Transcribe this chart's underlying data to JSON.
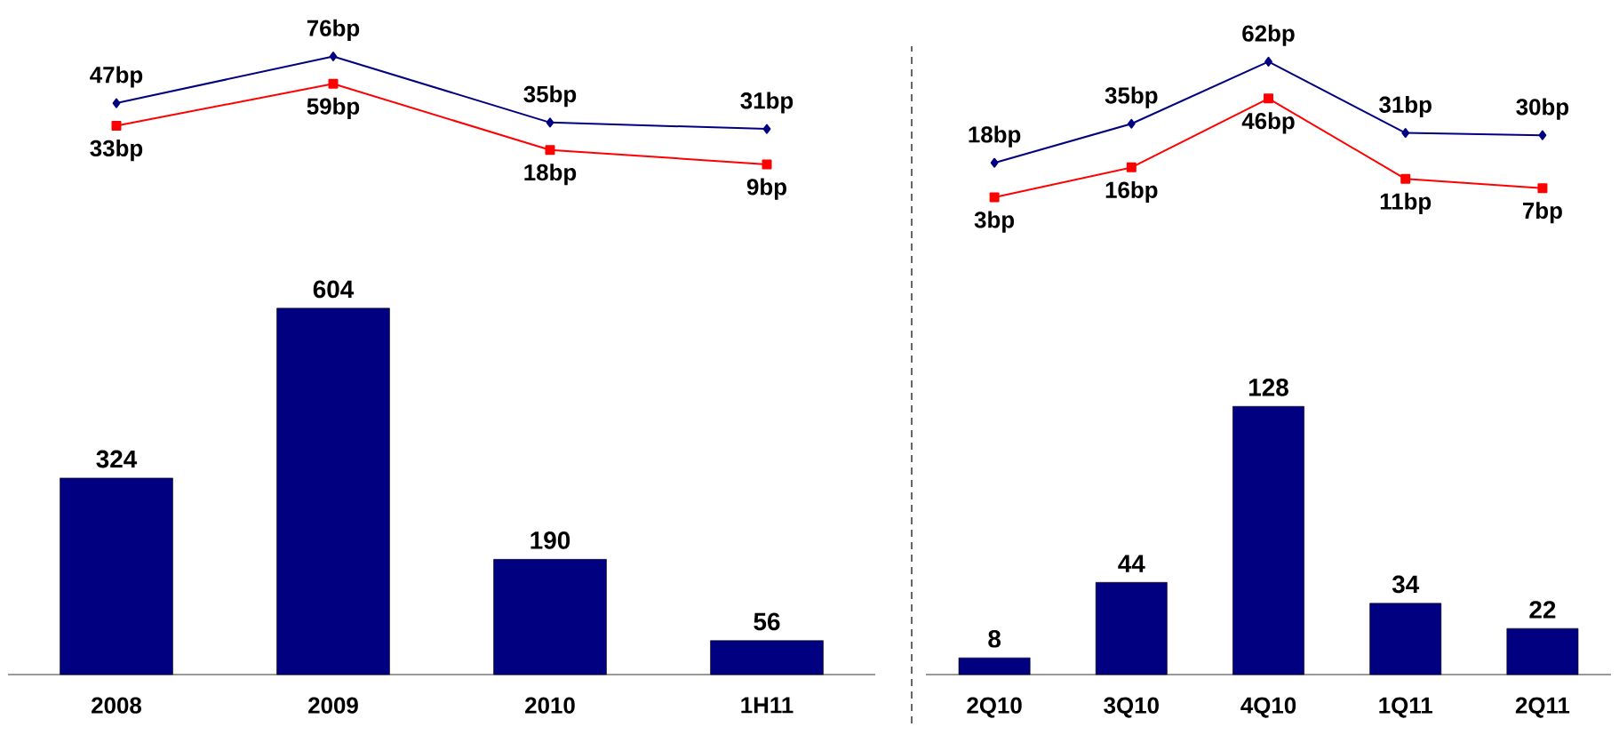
{
  "chart_data": [
    {
      "type": "line",
      "categories": [
        null,
        null,
        null,
        null
      ],
      "tick_labels": false,
      "series": [
        {
          "color": "#000080",
          "marker": "diamond",
          "line_style": "solid",
          "values": [
            47,
            76,
            35,
            31
          ],
          "value_labels": [
            "47bp",
            "76bp",
            "35bp",
            "31bp"
          ]
        },
        {
          "color": "#ff0000",
          "marker": "square",
          "line_style": "solid",
          "values": [
            33,
            59,
            18,
            9
          ],
          "value_labels": [
            "33bp",
            "59bp",
            "18bp",
            "9bp"
          ]
        }
      ]
    },
    {
      "type": "bar",
      "categories": [
        "2008",
        "2009",
        "2010",
        "1H11"
      ],
      "tick_labels": "x",
      "data_labels": true,
      "series": [
        {
          "color": "#000080",
          "values": [
            324,
            604,
            190,
            56
          ]
        }
      ]
    },
    {
      "type": "line",
      "categories": [
        null,
        null,
        null,
        null,
        null
      ],
      "tick_labels": false,
      "series": [
        {
          "color": "#000080",
          "marker": "diamond",
          "line_style": "solid",
          "values": [
            18,
            35,
            62,
            31,
            30
          ],
          "value_labels": [
            "18bp",
            "35bp",
            "62bp",
            "31bp",
            "30bp"
          ]
        },
        {
          "color": "#ff0000",
          "marker": "square",
          "line_style": "solid",
          "values": [
            3,
            16,
            46,
            11,
            7
          ],
          "value_labels": [
            "3bp",
            "16bp",
            "46bp",
            "11bp",
            "7bp"
          ]
        }
      ]
    },
    {
      "type": "bar",
      "categories": [
        "2Q10",
        "3Q10",
        "4Q10",
        "1Q11",
        "2Q11"
      ],
      "tick_labels": "x",
      "data_labels": true,
      "series": [
        {
          "color": "#000080",
          "values": [
            8,
            44,
            128,
            34,
            22
          ]
        }
      ]
    }
  ]
}
